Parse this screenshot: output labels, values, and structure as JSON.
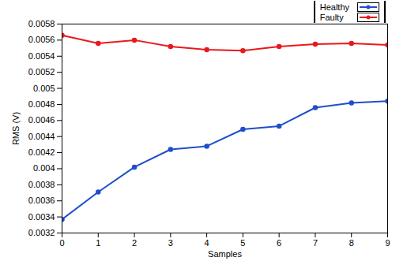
{
  "chart_data": {
    "type": "line",
    "x_label": "Samples",
    "y_label": "RMS (V)",
    "x": [
      0,
      1,
      2,
      3,
      4,
      5,
      6,
      7,
      8,
      9
    ],
    "series": [
      {
        "name": "Healthy",
        "color": "#1f4fc8",
        "marker": "circle",
        "values": [
          0.00337,
          0.00371,
          0.00402,
          0.00424,
          0.00428,
          0.00449,
          0.00453,
          0.00476,
          0.00482,
          0.00484
        ]
      },
      {
        "name": "Faulty",
        "color": "#e8191c",
        "marker": "circle",
        "values": [
          0.00566,
          0.00556,
          0.0056,
          0.00552,
          0.00548,
          0.00547,
          0.00552,
          0.00555,
          0.00556,
          0.00554
        ]
      }
    ],
    "xlim": [
      0,
      9
    ],
    "xticks": [
      0,
      1,
      2,
      3,
      4,
      5,
      6,
      7,
      8,
      9
    ],
    "ylim": [
      0.0032,
      0.0058
    ],
    "yticks": [
      0.0032,
      0.0034,
      0.0036,
      0.0038,
      0.004,
      0.0042,
      0.0044,
      0.0046,
      0.0048,
      0.005,
      0.0052,
      0.0054,
      0.0056,
      0.0058
    ],
    "grid": false,
    "legend": "upper right"
  }
}
